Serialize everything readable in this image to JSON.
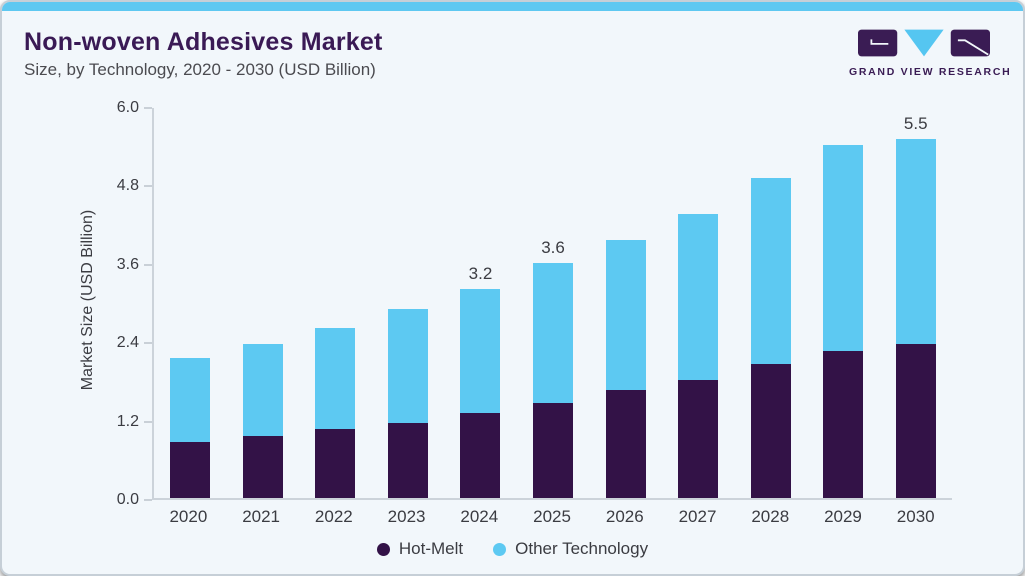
{
  "header": {
    "title": "Non-woven Adhesives Market",
    "subtitle": "Size, by Technology, 2020 - 2030 (USD Billion)",
    "brand": "GRAND VIEW RESEARCH"
  },
  "chart_data": {
    "type": "bar",
    "stacked": true,
    "title": "Non-woven Adhesives Market Size, by Technology, 2020 - 2030 (USD Billion)",
    "ylabel": "Market Size (USD Billion)",
    "xlabel": "",
    "ylim": [
      0,
      6.0
    ],
    "ytick_labels": [
      "0.0",
      "1.2",
      "2.4",
      "3.6",
      "4.8",
      "6.0"
    ],
    "grid": false,
    "legend_position": "bottom",
    "categories": [
      "2020",
      "2021",
      "2022",
      "2023",
      "2024",
      "2025",
      "2026",
      "2027",
      "2028",
      "2029",
      "2030"
    ],
    "series": [
      {
        "name": "Hot-Melt",
        "color": "#331247",
        "values": [
          0.85,
          0.95,
          1.05,
          1.15,
          1.3,
          1.45,
          1.65,
          1.8,
          2.05,
          2.25,
          2.35
        ]
      },
      {
        "name": "Other Technology",
        "color": "#5DC9F2",
        "values": [
          1.3,
          1.4,
          1.55,
          1.75,
          1.9,
          2.15,
          2.3,
          2.55,
          2.85,
          3.15,
          3.15
        ]
      }
    ],
    "totals": [
      2.15,
      2.35,
      2.6,
      2.9,
      3.2,
      3.6,
      3.95,
      4.35,
      4.9,
      5.4,
      5.5
    ],
    "bar_total_labels": [
      "",
      "",
      "",
      "",
      "3.2",
      "3.6",
      "",
      "",
      "",
      "",
      "5.5"
    ]
  },
  "colors": {
    "hot_melt": "#331247",
    "other_technology": "#5DC9F2",
    "top_strip": "#5EC8F1",
    "title_text": "#3A1A55",
    "axis_line": "#CCD3DA"
  }
}
